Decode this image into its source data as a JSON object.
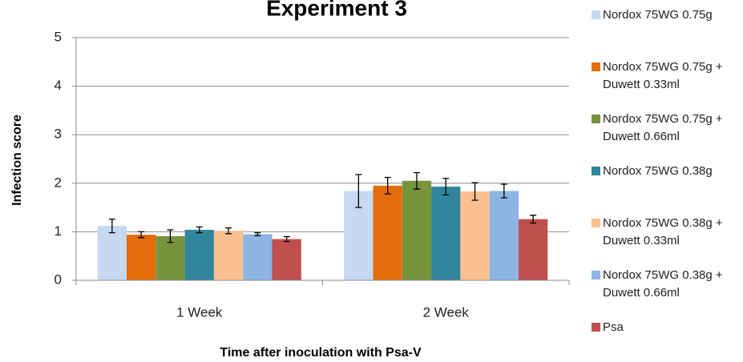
{
  "chart_data": {
    "type": "bar",
    "title": "Experiment 3",
    "x_label": "Time after inoculation with Psa-V",
    "y_label": "Infection score",
    "categories": [
      "1 Week",
      "2 Week"
    ],
    "ylim": [
      0,
      5
    ],
    "yticks": [
      0,
      1,
      2,
      3,
      4,
      5
    ],
    "grid": true,
    "series": [
      {
        "name": "Nordox 75WG 0.75g",
        "color": "#c6d9f1",
        "values": [
          1.12,
          1.84
        ],
        "errors": [
          0.14,
          0.34
        ]
      },
      {
        "name": "Nordox 75WG 0.75g + Duwett 0.33ml",
        "color": "#e46c0a",
        "values": [
          0.94,
          1.95
        ],
        "errors": [
          0.06,
          0.17
        ]
      },
      {
        "name": "Nordox 75WG 0.75g + Duwett 0.66ml",
        "color": "#77933c",
        "values": [
          0.91,
          2.05
        ],
        "errors": [
          0.13,
          0.17
        ]
      },
      {
        "name": "Nordox 75WG 0.38g",
        "color": "#31859c",
        "values": [
          1.04,
          1.93
        ],
        "errors": [
          0.06,
          0.17
        ]
      },
      {
        "name": "Nordox 75WG 0.38g + Duwett 0.33ml",
        "color": "#fac090",
        "values": [
          1.02,
          1.83
        ],
        "errors": [
          0.06,
          0.18
        ]
      },
      {
        "name": "Nordox 75WG 0.38g + Duwett 0.66ml",
        "color": "#8eb4e3",
        "values": [
          0.95,
          1.84
        ],
        "errors": [
          0.03,
          0.14
        ]
      },
      {
        "name": "Psa",
        "color": "#c0504d",
        "values": [
          0.85,
          1.26
        ],
        "errors": [
          0.05,
          0.08
        ]
      }
    ]
  }
}
